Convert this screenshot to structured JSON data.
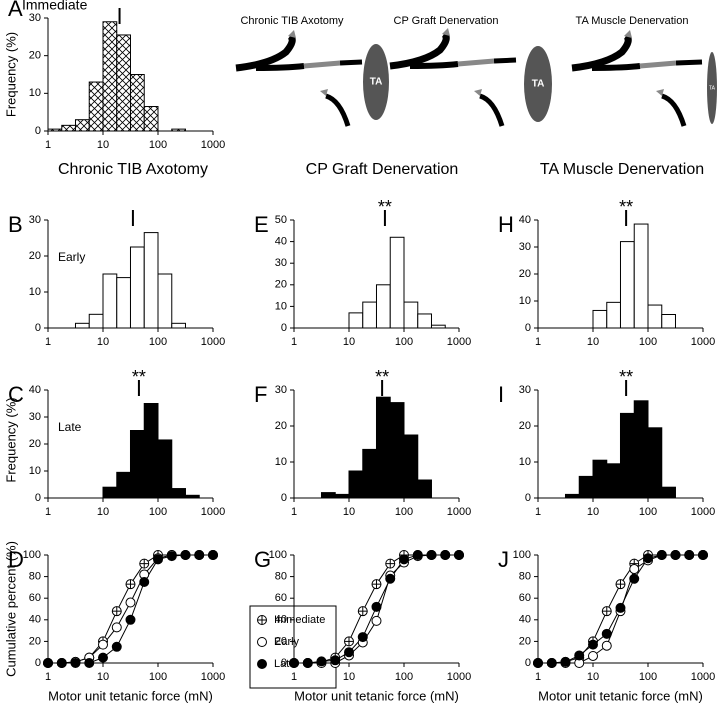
{
  "chart_data": [
    {
      "panel": "A",
      "type": "histogram",
      "title": "Immediate",
      "y_label": "Frequency (%)",
      "bins": [
        1,
        1.78,
        3.16,
        5.62,
        10,
        17.8,
        31.6,
        56.2,
        100,
        178,
        316,
        562,
        1000
      ],
      "values": [
        0.5,
        1.5,
        3,
        13,
        29,
        25.5,
        15,
        6.5,
        0,
        0.5,
        0,
        0
      ],
      "hatch": true,
      "color": "#ffffff",
      "median": 20,
      "xscale": "log",
      "xlim": [
        1,
        1000
      ],
      "xticks": [
        1,
        10,
        100,
        1000
      ],
      "ylim": [
        0,
        30
      ],
      "yticks": [
        0,
        10,
        20,
        30
      ]
    },
    {
      "panel": "B",
      "type": "histogram",
      "label": "Early",
      "bins": [
        1,
        1.78,
        3.16,
        5.62,
        10,
        17.8,
        31.6,
        56.2,
        100,
        178,
        316,
        562,
        1000
      ],
      "values": [
        0,
        0,
        1.3,
        3.8,
        15,
        14,
        22.5,
        26.5,
        15,
        1.3,
        0,
        0
      ],
      "color": "#ffffff",
      "median": 35,
      "xscale": "log",
      "xlim": [
        1,
        1000
      ],
      "xticks": [
        1,
        10,
        100,
        1000
      ],
      "ylim": [
        0,
        30
      ],
      "yticks": [
        0,
        10,
        20,
        30
      ]
    },
    {
      "panel": "C",
      "type": "histogram",
      "label": "Late",
      "y_label": "Frequency (%)",
      "bins": [
        1,
        1.78,
        3.16,
        5.62,
        10,
        17.8,
        31.6,
        56.2,
        100,
        178,
        316,
        562,
        1000
      ],
      "values": [
        0,
        0,
        0,
        0,
        4,
        9.5,
        25,
        35,
        21.5,
        3.5,
        1,
        0
      ],
      "color": "#000000",
      "median": 45,
      "annotation": "**",
      "xscale": "log",
      "xlim": [
        1,
        1000
      ],
      "xticks": [
        1,
        10,
        100,
        1000
      ],
      "ylim": [
        0,
        40
      ],
      "yticks": [
        0,
        10,
        20,
        30,
        40
      ]
    },
    {
      "panel": "D",
      "type": "line",
      "y_label": "Cumulative percent (%)",
      "x_label": "Motor unit tetanic force (mN)",
      "x": [
        1,
        1.78,
        3.16,
        5.62,
        10,
        17.8,
        31.6,
        56.2,
        100,
        178,
        316,
        562,
        1000
      ],
      "series": [
        {
          "name": "Immediate",
          "marker": "crossed-circle",
          "color": "#000000",
          "values": [
            0,
            0,
            1,
            5,
            20,
            48,
            73,
            92,
            100,
            100,
            100,
            100,
            100
          ]
        },
        {
          "name": "Early",
          "marker": "open-circle",
          "color": "#000000",
          "values": [
            0,
            0,
            1,
            5,
            17,
            33,
            56,
            82,
            97,
            100,
            100,
            100,
            100
          ]
        },
        {
          "name": "Late",
          "marker": "filled-circle",
          "color": "#000000",
          "values": [
            0,
            0,
            0,
            0,
            5,
            15,
            40,
            75,
            96,
            99,
            100,
            100,
            100
          ]
        }
      ],
      "legend": "right",
      "xscale": "log",
      "xlim": [
        1,
        1000
      ],
      "xticks": [
        1,
        10,
        100,
        1000
      ],
      "ylim": [
        0,
        100
      ],
      "yticks": [
        0,
        20,
        40,
        60,
        80,
        100
      ]
    },
    {
      "panel": "E",
      "type": "histogram",
      "bins": [
        1,
        1.78,
        3.16,
        5.62,
        10,
        17.8,
        31.6,
        56.2,
        100,
        178,
        316,
        562,
        1000
      ],
      "values": [
        0,
        0,
        0,
        0,
        7,
        12,
        20,
        42,
        12,
        6.5,
        1.3,
        0
      ],
      "color": "#ffffff",
      "median": 45,
      "annotation": "**",
      "xscale": "log",
      "xlim": [
        1,
        1000
      ],
      "xticks": [
        1,
        10,
        100,
        1000
      ],
      "ylim": [
        0,
        50
      ],
      "yticks": [
        0,
        10,
        20,
        30,
        40,
        50
      ]
    },
    {
      "panel": "F",
      "type": "histogram",
      "bins": [
        1,
        1.78,
        3.16,
        5.62,
        10,
        17.8,
        31.6,
        56.2,
        100,
        178,
        316,
        562,
        1000
      ],
      "values": [
        0,
        0,
        1.5,
        1,
        7.5,
        13.5,
        28,
        26.5,
        17.5,
        5,
        0,
        0
      ],
      "color": "#000000",
      "median": 40,
      "annotation": "**",
      "xscale": "log",
      "xlim": [
        1,
        1000
      ],
      "xticks": [
        1,
        10,
        100,
        1000
      ],
      "ylim": [
        0,
        30
      ],
      "yticks": [
        0,
        10,
        20,
        30
      ]
    },
    {
      "panel": "G",
      "type": "line",
      "x_label": "Motor unit tetanic force (mN)",
      "x": [
        1,
        1.78,
        3.16,
        5.62,
        10,
        17.8,
        31.6,
        56.2,
        100,
        178,
        316,
        562,
        1000
      ],
      "series": [
        {
          "marker": "crossed-circle",
          "color": "#000000",
          "values": [
            0,
            0,
            1,
            5,
            20,
            48,
            73,
            92,
            100,
            100,
            100,
            100,
            100
          ]
        },
        {
          "marker": "open-circle",
          "color": "#000000",
          "values": [
            0,
            0,
            0,
            0,
            7,
            19,
            39,
            81,
            93,
            99,
            100,
            100,
            100
          ]
        },
        {
          "marker": "filled-circle",
          "color": "#000000",
          "values": [
            0,
            0,
            1.5,
            2.5,
            10,
            24,
            52,
            78,
            96,
            100,
            100,
            100,
            100
          ]
        }
      ],
      "xscale": "log",
      "xlim": [
        1,
        1000
      ],
      "xticks": [
        1,
        10,
        100,
        1000
      ],
      "ylim": [
        0,
        100
      ],
      "yticks": [
        0,
        20,
        40,
        60,
        80,
        100
      ]
    },
    {
      "panel": "H",
      "type": "histogram",
      "bins": [
        1,
        1.78,
        3.16,
        5.62,
        10,
        17.8,
        31.6,
        56.2,
        100,
        178,
        316,
        562,
        1000
      ],
      "values": [
        0,
        0,
        0,
        0,
        6.5,
        9.5,
        32,
        38.5,
        8.5,
        5,
        0,
        0
      ],
      "color": "#ffffff",
      "median": 40,
      "annotation": "**",
      "xscale": "log",
      "xlim": [
        1,
        1000
      ],
      "xticks": [
        1,
        10,
        100,
        1000
      ],
      "ylim": [
        0,
        40
      ],
      "yticks": [
        0,
        10,
        20,
        30,
        40
      ]
    },
    {
      "panel": "I",
      "type": "histogram",
      "bins": [
        1,
        1.78,
        3.16,
        5.62,
        10,
        17.8,
        31.6,
        56.2,
        100,
        178,
        316,
        562,
        1000
      ],
      "values": [
        0,
        0,
        1,
        6,
        10.5,
        9.5,
        23.5,
        27,
        19.5,
        3,
        0,
        0
      ],
      "color": "#000000",
      "median": 40,
      "annotation": "**",
      "xscale": "log",
      "xlim": [
        1,
        1000
      ],
      "xticks": [
        1,
        10,
        100,
        1000
      ],
      "ylim": [
        0,
        30
      ],
      "yticks": [
        0,
        10,
        20,
        30
      ]
    },
    {
      "panel": "J",
      "type": "line",
      "x_label": "Motor unit tetanic force (mN)",
      "x": [
        1,
        1.78,
        3.16,
        5.62,
        10,
        17.8,
        31.6,
        56.2,
        100,
        178,
        316,
        562,
        1000
      ],
      "series": [
        {
          "marker": "crossed-circle",
          "color": "#000000",
          "values": [
            0,
            0,
            1,
            5,
            20,
            48,
            73,
            92,
            100,
            100,
            100,
            100,
            100
          ]
        },
        {
          "marker": "open-circle",
          "color": "#000000",
          "values": [
            0,
            0,
            0,
            0,
            6.5,
            16,
            48,
            87,
            95,
            100,
            100,
            100,
            100
          ]
        },
        {
          "marker": "filled-circle",
          "color": "#000000",
          "values": [
            0,
            0,
            1,
            7,
            17,
            27,
            51,
            78,
            97,
            100,
            100,
            100,
            100
          ]
        }
      ],
      "xscale": "log",
      "xlim": [
        1,
        1000
      ],
      "xticks": [
        1,
        10,
        100,
        1000
      ],
      "ylim": [
        0,
        100
      ],
      "yticks": [
        0,
        20,
        40,
        60,
        80,
        100
      ]
    }
  ],
  "column_titles": [
    "Chronic TIB Axotomy",
    "CP Graft Denervation",
    "TA Muscle Denervation"
  ],
  "diagrams": [
    {
      "title": "Chronic TIB Axotomy",
      "muscle": "TA"
    },
    {
      "title": "CP Graft Denervation",
      "muscle": "TA"
    },
    {
      "title": "TA Muscle Denervation",
      "muscle": "TA"
    }
  ]
}
